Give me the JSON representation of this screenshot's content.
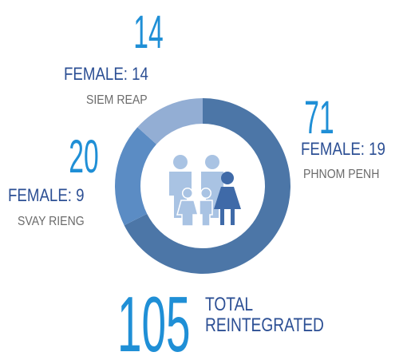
{
  "chart_data": {
    "type": "donut",
    "categories": [
      "PHNOM PENH",
      "SVAY RIENG",
      "SIEM REAP"
    ],
    "values": [
      71,
      20,
      14
    ],
    "colors": [
      "#4c76a7",
      "#5b8cc4",
      "#93aed4"
    ],
    "female_labels": [
      "FEMALE: 19",
      "FEMALE: 9",
      "FEMALE: 14"
    ],
    "total": 105,
    "total_label": [
      "TOTAL",
      "REINTEGRATED"
    ]
  }
}
